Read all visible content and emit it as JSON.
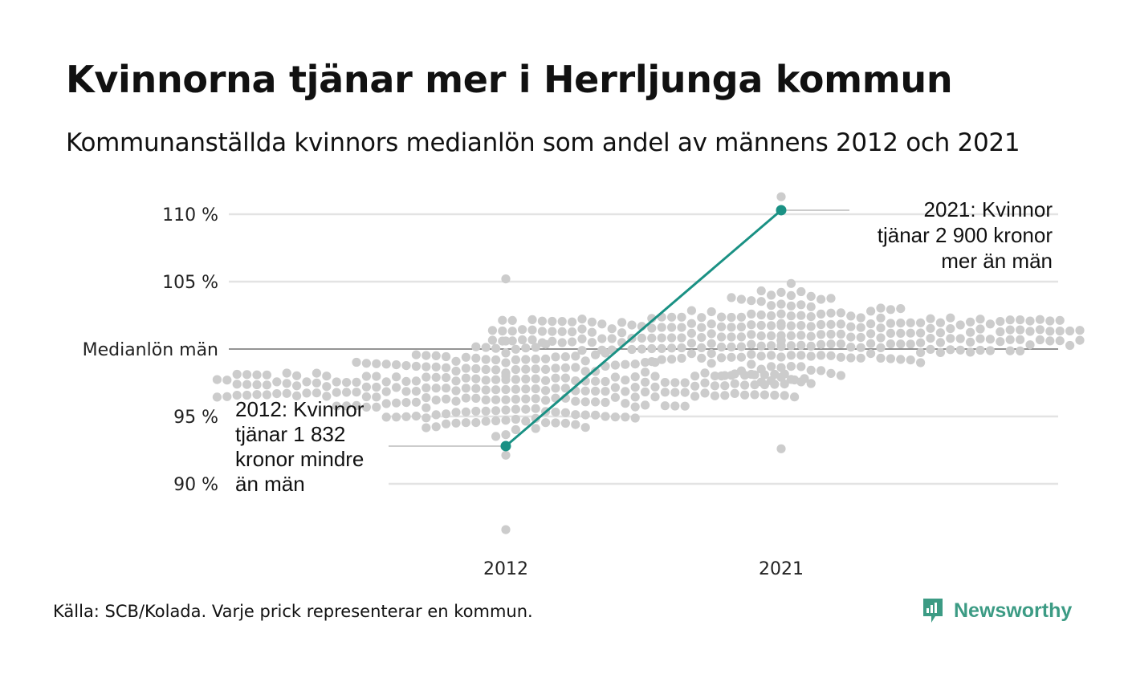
{
  "title": "Kvinnorna tjänar mer i Herrljunga kommun",
  "subtitle": "Kommunanställda kvinnors medianlön som andel av männens 2012 och 2021",
  "source": "Källa: SCB/Kolada. Varje prick representerar en kommun.",
  "brand": "Newsworthy",
  "colors": {
    "accent": "#1a9184",
    "dots": "#cccccc",
    "grid": "#e3e3e3",
    "baseline": "#555555",
    "brand": "#3c9b84"
  },
  "chart_data": {
    "type": "scatter",
    "title": "Kvinnorna tjänar mer i Herrljunga kommun",
    "ylim": [
      85,
      112
    ],
    "yticks": [
      {
        "value": 90,
        "label": "90 %"
      },
      {
        "value": 95,
        "label": "95 %"
      },
      {
        "value": 100,
        "label": "Medianlön män"
      },
      {
        "value": 105,
        "label": "105 %"
      },
      {
        "value": 110,
        "label": "110 %"
      }
    ],
    "categories": [
      "2012",
      "2021"
    ],
    "highlight": {
      "name": "Herrljunga",
      "values": [
        92.8,
        110.3
      ]
    },
    "annotations": [
      {
        "year": "2012",
        "lines": [
          "2012: Kvinnor",
          "tjänar 1 832",
          "kronor mindre",
          "än män"
        ]
      },
      {
        "year": "2021",
        "lines": [
          "2021: Kvinnor",
          "tjänar 2 900 kronor",
          "mer än män"
        ]
      }
    ],
    "distribution": [
      {
        "year": "2012",
        "count": 290,
        "min": 86.6,
        "max": 105.2,
        "median": 97.0
      },
      {
        "year": "2021",
        "count": 290,
        "min": 92.6,
        "max": 111.3,
        "median": 101.0
      }
    ]
  }
}
